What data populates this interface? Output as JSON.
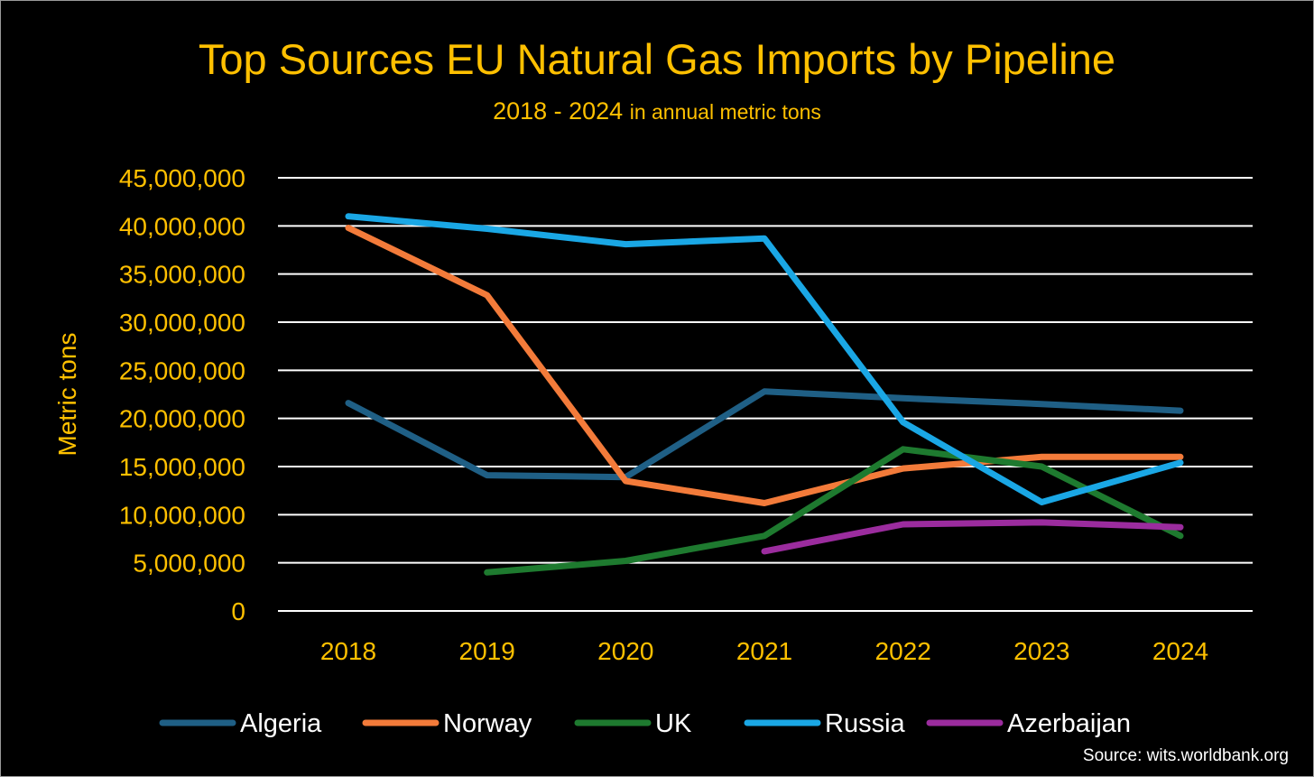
{
  "chart_data": {
    "type": "line",
    "title": "Top Sources EU Natural Gas Imports by Pipeline",
    "subtitle_years": "2018 - 2024",
    "subtitle_unit": "in annual metric tons",
    "ylabel": "Metric tons",
    "xlabel": "",
    "source": "Source: wits.worldbank.org",
    "ylim": [
      0,
      45000000
    ],
    "yticks": [
      0,
      5000000,
      10000000,
      15000000,
      20000000,
      25000000,
      30000000,
      35000000,
      40000000,
      45000000
    ],
    "ytick_labels": [
      "0",
      "5,000,000",
      "10,000,000",
      "15,000,000",
      "20,000,000",
      "25,000,000",
      "30,000,000",
      "35,000,000",
      "40,000,000",
      "45,000,000"
    ],
    "categories": [
      "2018",
      "2019",
      "2020",
      "2021",
      "2022",
      "2023",
      "2024"
    ],
    "grid": true,
    "legend_position": "bottom",
    "series": [
      {
        "name": "Algeria",
        "color": "#1F5F85",
        "values": [
          21600000,
          14100000,
          13900000,
          22800000,
          22100000,
          21500000,
          20800000
        ]
      },
      {
        "name": "Norway",
        "color": "#F37B3A",
        "values": [
          39800000,
          32800000,
          13500000,
          11200000,
          14800000,
          16000000,
          16000000
        ]
      },
      {
        "name": "UK",
        "color": "#1E7A2F",
        "values": [
          null,
          4000000,
          5200000,
          7800000,
          16800000,
          15000000,
          7800000
        ]
      },
      {
        "name": "Russia",
        "color": "#1AA7E5",
        "values": [
          41000000,
          39700000,
          38100000,
          38700000,
          19600000,
          11300000,
          15400000
        ]
      },
      {
        "name": "Azerbaijan",
        "color": "#9B2C9E",
        "values": [
          null,
          null,
          null,
          6200000,
          9000000,
          9200000,
          8700000
        ]
      }
    ]
  }
}
